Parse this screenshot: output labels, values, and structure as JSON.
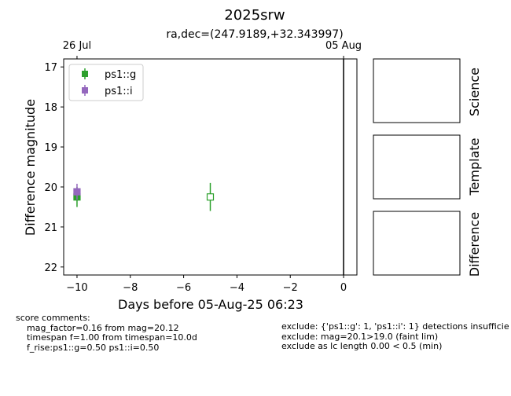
{
  "chart_data": {
    "type": "scatter",
    "title": "2025srw",
    "subtitle": "ra,dec=(247.9189,+32.343997)",
    "xlabel": "Days before 05-Aug-25 06:23",
    "ylabel": "Difference magnitude",
    "xlim": [
      -10.5,
      0.5
    ],
    "ylim": [
      22.2,
      16.8
    ],
    "y_inverted": true,
    "x_ticks": [
      -10,
      -8,
      -6,
      -4,
      -2,
      0
    ],
    "x_tick_labels": [
      "−10",
      "−8",
      "−6",
      "−4",
      "−2",
      "0"
    ],
    "y_ticks": [
      17,
      18,
      19,
      20,
      21,
      22
    ],
    "y_tick_labels": [
      "17",
      "18",
      "19",
      "20",
      "21",
      "22"
    ],
    "top_axis": {
      "ticks": [
        -10,
        0
      ],
      "labels": [
        "26 Jul",
        "05 Aug"
      ]
    },
    "vertical_line_x": 0,
    "legend_position": "upper-left",
    "series": [
      {
        "name": "ps1::g",
        "color": "#2ca02c",
        "marker": "square",
        "points": [
          {
            "x": -10.0,
            "y": 20.25,
            "yerr": 0.25,
            "filled": true
          },
          {
            "x": -5.0,
            "y": 20.25,
            "yerr": 0.35,
            "filled": false
          }
        ]
      },
      {
        "name": "ps1::i",
        "color": "#9467bd",
        "marker": "square",
        "points": [
          {
            "x": -10.0,
            "y": 20.12,
            "yerr": 0.2,
            "filled": true
          }
        ]
      }
    ]
  },
  "cutouts": {
    "science_label": "Science",
    "template_label": "Template",
    "difference_label": "Difference"
  },
  "comments": {
    "left": "score comments:\n    mag_factor=0.16 from mag=20.12\n    timespan f=1.00 from timespan=10.0d\n    f_rise:ps1::g=0.50 ps1::i=0.50",
    "right": "exclude: {'ps1::g': 1, 'ps1::i': 1} detections insufficie\nexclude: mag=20.1>19.0 (faint lim)\nexclude as lc length 0.00 < 0.5 (min)"
  }
}
